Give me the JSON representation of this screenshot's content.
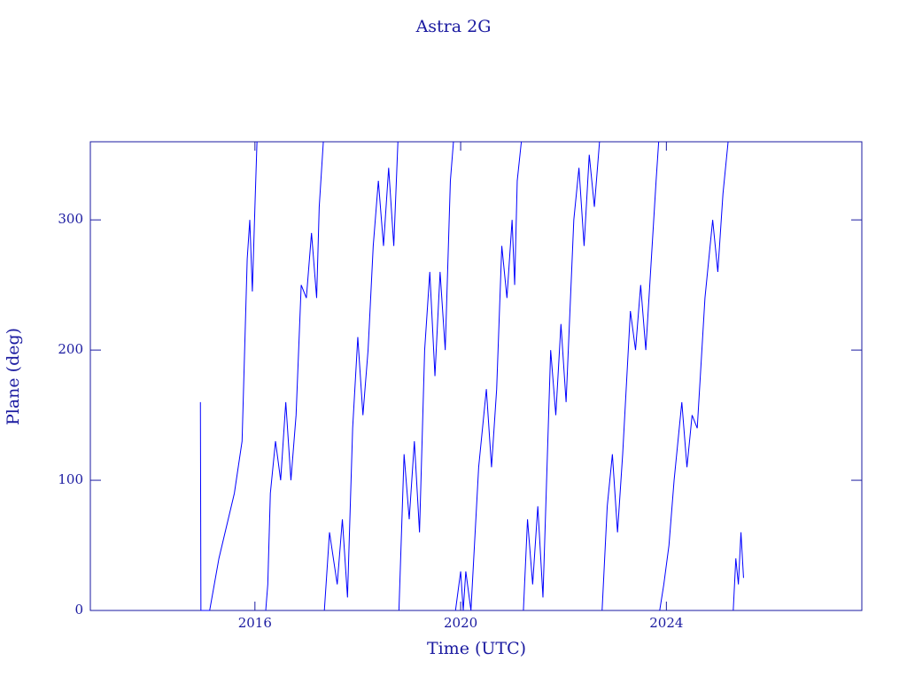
{
  "chart_data": {
    "type": "line",
    "title": "Astra 2G",
    "x_label": "Time (UTC)",
    "y_label": "Plane (deg)",
    "color": "#0000ff",
    "xlim": [
      2012.8,
      2027.8
    ],
    "xticks": [
      2016,
      2020,
      2024
    ],
    "ylim": [
      0,
      360
    ],
    "yticks": [
      0,
      100,
      200,
      300
    ],
    "x": [
      2014.94,
      2014.95,
      2015.12,
      2015.3,
      2015.6,
      2015.75,
      2015.85,
      2015.9,
      2015.95,
      2016.0,
      2016.04,
      2016.1,
      2016.21,
      2016.25,
      2016.3,
      2016.4,
      2016.5,
      2016.6,
      2016.7,
      2016.8,
      2016.9,
      2017.0,
      2017.1,
      2017.2,
      2017.25,
      2017.33,
      2017.34,
      2017.35,
      2017.45,
      2017.6,
      2017.7,
      2017.8,
      2017.9,
      2018.0,
      2018.1,
      2018.2,
      2018.3,
      2018.4,
      2018.5,
      2018.6,
      2018.7,
      2018.78,
      2018.79,
      2018.8,
      2018.9,
      2019.0,
      2019.1,
      2019.2,
      2019.3,
      2019.4,
      2019.5,
      2019.6,
      2019.7,
      2019.8,
      2019.86,
      2019.88,
      2019.9,
      2020.0,
      2020.05,
      2020.1,
      2020.2,
      2020.35,
      2020.5,
      2020.6,
      2020.7,
      2020.8,
      2020.9,
      2021.0,
      2021.05,
      2021.1,
      2021.18,
      2021.2,
      2021.22,
      2021.3,
      2021.4,
      2021.5,
      2021.6,
      2021.75,
      2021.85,
      2021.95,
      2022.05,
      2022.2,
      2022.3,
      2022.4,
      2022.5,
      2022.6,
      2022.7,
      2022.72,
      2022.75,
      2022.85,
      2022.95,
      2023.05,
      2023.15,
      2023.3,
      2023.4,
      2023.5,
      2023.6,
      2023.8,
      2023.85,
      2023.86,
      2023.87,
      2023.95,
      2024.05,
      2024.15,
      2024.3,
      2024.4,
      2024.5,
      2024.6,
      2024.75,
      2024.9,
      2025.0,
      2025.1,
      2025.2,
      2025.25,
      2025.3,
      2025.35,
      2025.4,
      2025.45,
      2025.5
    ],
    "values": [
      160,
      0,
      0,
      40,
      90,
      130,
      270,
      300,
      245,
      310,
      360,
      null,
      0,
      20,
      90,
      130,
      100,
      160,
      100,
      150,
      250,
      240,
      290,
      240,
      310,
      360,
      null,
      0,
      60,
      20,
      70,
      10,
      140,
      210,
      150,
      200,
      280,
      330,
      280,
      340,
      280,
      360,
      null,
      0,
      120,
      70,
      130,
      60,
      200,
      260,
      180,
      260,
      200,
      330,
      360,
      null,
      0,
      30,
      0,
      30,
      0,
      110,
      170,
      110,
      170,
      280,
      240,
      300,
      250,
      330,
      360,
      null,
      0,
      70,
      20,
      80,
      10,
      200,
      150,
      220,
      160,
      300,
      340,
      280,
      350,
      310,
      360,
      null,
      0,
      80,
      120,
      60,
      120,
      230,
      200,
      250,
      200,
      330,
      360,
      null,
      0,
      20,
      50,
      100,
      160,
      110,
      150,
      140,
      240,
      300,
      260,
      320,
      360,
      null,
      0,
      40,
      20,
      60,
      25
    ]
  }
}
